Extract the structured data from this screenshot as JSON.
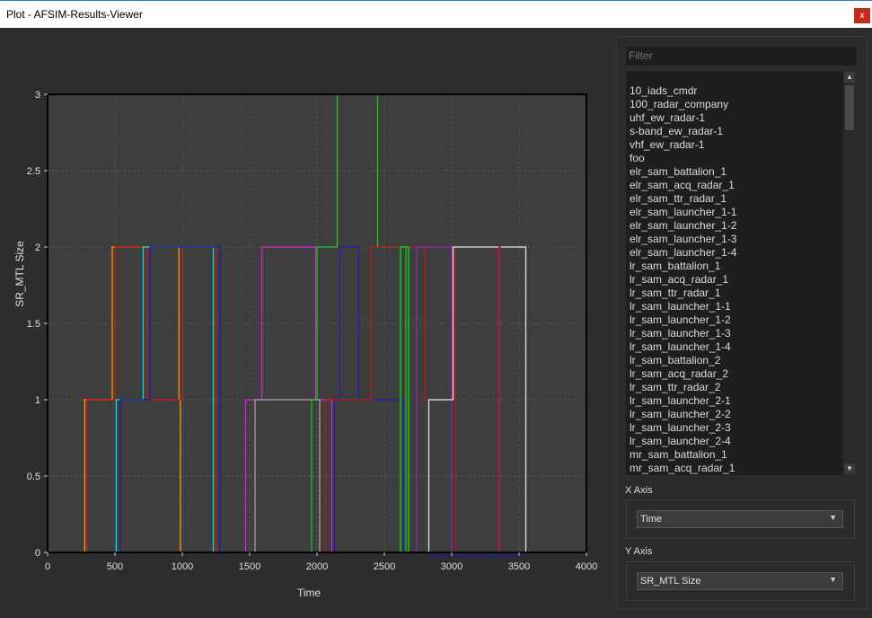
{
  "window": {
    "title": "Plot - AFSIM-Results-Viewer",
    "close_label": "x"
  },
  "colors": {
    "plot_bg": "#3e3e3f",
    "frame": "#000000",
    "grid": "#5a5a5a",
    "text": "#e0e0e0"
  },
  "filter": {
    "placeholder": "Filter"
  },
  "list": {
    "items": [
      "10_iads_cmdr",
      "100_radar_company",
      "uhf_ew_radar-1",
      "s-band_ew_radar-1",
      "vhf_ew_radar-1",
      "foo",
      "elr_sam_battalion_1",
      "elr_sam_acq_radar_1",
      "elr_sam_ttr_radar_1",
      "elr_sam_launcher_1-1",
      "elr_sam_launcher_1-2",
      "elr_sam_launcher_1-3",
      "elr_sam_launcher_1-4",
      "lr_sam_battalion_1",
      "lr_sam_acq_radar_1",
      "lr_sam_ttr_radar_1",
      "lr_sam_launcher_1-1",
      "lr_sam_launcher_1-2",
      "lr_sam_launcher_1-3",
      "lr_sam_launcher_1-4",
      "lr_sam_battalion_2",
      "lr_sam_acq_radar_2",
      "lr_sam_ttr_radar_2",
      "lr_sam_launcher_2-1",
      "lr_sam_launcher_2-2",
      "lr_sam_launcher_2-3",
      "lr_sam_launcher_2-4",
      "mr_sam_battalion_1",
      "mr_sam_acq_radar_1"
    ]
  },
  "x_axis": {
    "label": "X Axis",
    "selected": "Time"
  },
  "y_axis": {
    "label": "Y Axis",
    "selected": "SR_MTL Size"
  },
  "chart_data": {
    "type": "line",
    "xlabel": "Time",
    "ylabel": "SR_MTL Size",
    "xlim": [
      0,
      4000
    ],
    "ylim": [
      0,
      3
    ],
    "xticks": [
      0,
      500,
      1000,
      1500,
      2000,
      2500,
      3000,
      3500,
      4000
    ],
    "xtick_labels": [
      "0",
      "500",
      "1000",
      "1500",
      "2000",
      "2500",
      "3000",
      "3500",
      "4000"
    ],
    "yticks": [
      0,
      0.5,
      1,
      1.5,
      2,
      2.5,
      3
    ],
    "ytick_labels": [
      "0",
      "0.5",
      "1",
      "1.5",
      "2",
      "2.5",
      "3"
    ],
    "grid": true,
    "series": [
      {
        "color": "#ffa500",
        "points": [
          [
            0,
            0
          ],
          [
            275,
            0
          ],
          [
            275,
            1
          ],
          [
            480,
            1
          ],
          [
            480,
            2
          ],
          [
            975,
            2
          ],
          [
            975,
            1
          ],
          [
            985,
            1
          ],
          [
            985,
            0
          ],
          [
            4000,
            0
          ]
        ]
      },
      {
        "color": "#d81818",
        "points": [
          [
            0,
            0
          ],
          [
            290,
            0
          ],
          [
            290,
            1
          ],
          [
            500,
            1
          ],
          [
            500,
            2
          ],
          [
            740,
            2
          ],
          [
            740,
            1
          ],
          [
            1000,
            1
          ],
          [
            1000,
            2
          ],
          [
            1250,
            2
          ],
          [
            1250,
            0
          ],
          [
            4000,
            0
          ]
        ]
      },
      {
        "color": "#00e5e5",
        "points": [
          [
            0,
            0
          ],
          [
            510,
            0
          ],
          [
            510,
            1
          ],
          [
            710,
            1
          ],
          [
            710,
            2
          ],
          [
            1230,
            2
          ],
          [
            1230,
            0
          ],
          [
            4000,
            0
          ]
        ]
      },
      {
        "color": "#1a1aa8",
        "points": [
          [
            0,
            0
          ],
          [
            540,
            0
          ],
          [
            540,
            1
          ],
          [
            760,
            1
          ],
          [
            760,
            2
          ],
          [
            1280,
            2
          ],
          [
            1280,
            0
          ],
          [
            4000,
            0
          ]
        ]
      },
      {
        "color": "#e020e0",
        "points": [
          [
            0,
            0
          ],
          [
            1470,
            0
          ],
          [
            1470,
            1
          ],
          [
            1590,
            1
          ],
          [
            1590,
            2
          ],
          [
            1990,
            2
          ],
          [
            1990,
            1
          ],
          [
            2110,
            1
          ],
          [
            2110,
            0
          ],
          [
            4000,
            0
          ]
        ]
      },
      {
        "color": "#a8a8a8",
        "points": [
          [
            0,
            0
          ],
          [
            1540,
            0
          ],
          [
            1540,
            1
          ],
          [
            2020,
            1
          ],
          [
            2020,
            0
          ],
          [
            4000,
            0
          ]
        ]
      },
      {
        "color": "#20c820",
        "points": [
          [
            0,
            0
          ],
          [
            1960,
            0
          ],
          [
            1960,
            1
          ],
          [
            2000,
            1
          ],
          [
            2000,
            2
          ],
          [
            2150,
            2
          ],
          [
            2150,
            3
          ],
          [
            2450,
            3
          ],
          [
            2450,
            2
          ],
          [
            2660,
            2
          ],
          [
            2660,
            0
          ],
          [
            4000,
            0
          ]
        ]
      },
      {
        "color": "#2020b0",
        "points": [
          [
            0,
            0
          ],
          [
            2130,
            0
          ],
          [
            2130,
            1
          ],
          [
            2170,
            1
          ],
          [
            2170,
            2
          ],
          [
            2310,
            2
          ],
          [
            2310,
            1
          ],
          [
            2640,
            1
          ],
          [
            2640,
            0
          ],
          [
            4000,
            0
          ]
        ]
      },
      {
        "color": "#c01818",
        "points": [
          [
            0,
            0
          ],
          [
            2060,
            0
          ],
          [
            2060,
            1
          ],
          [
            2400,
            1
          ],
          [
            2400,
            2
          ],
          [
            2800,
            2
          ],
          [
            2800,
            1
          ],
          [
            3000,
            1
          ],
          [
            3000,
            2
          ],
          [
            3030,
            2
          ],
          [
            3030,
            0
          ],
          [
            4000,
            0
          ]
        ]
      },
      {
        "color": "#00ee00",
        "points": [
          [
            0,
            0
          ],
          [
            2620,
            0
          ],
          [
            2620,
            2
          ],
          [
            2680,
            2
          ],
          [
            2680,
            0
          ],
          [
            4000,
            0
          ]
        ]
      },
      {
        "color": "#9a20b0",
        "points": [
          [
            0,
            0
          ],
          [
            2740,
            0
          ],
          [
            2740,
            2
          ],
          [
            3000,
            2
          ],
          [
            3000,
            0
          ],
          [
            4000,
            0
          ]
        ]
      },
      {
        "color": "#e8e8e8",
        "points": [
          [
            0,
            0
          ],
          [
            2830,
            0
          ],
          [
            2830,
            1
          ],
          [
            3010,
            1
          ],
          [
            3010,
            2
          ],
          [
            3550,
            2
          ],
          [
            3550,
            0
          ],
          [
            3580,
            0
          ],
          [
            4000,
            0
          ]
        ]
      },
      {
        "color": "#1818aa",
        "points": [
          [
            0,
            0
          ],
          [
            2840,
            0
          ],
          [
            2840,
            -0.02
          ],
          [
            3520,
            -0.02
          ],
          [
            3520,
            0
          ],
          [
            4000,
            0
          ]
        ]
      },
      {
        "color": "#a81858",
        "points": [
          [
            0,
            0
          ],
          [
            3350,
            0
          ],
          [
            3350,
            2
          ],
          [
            3360,
            2
          ],
          [
            3360,
            0
          ],
          [
            4000,
            0
          ]
        ]
      }
    ]
  }
}
